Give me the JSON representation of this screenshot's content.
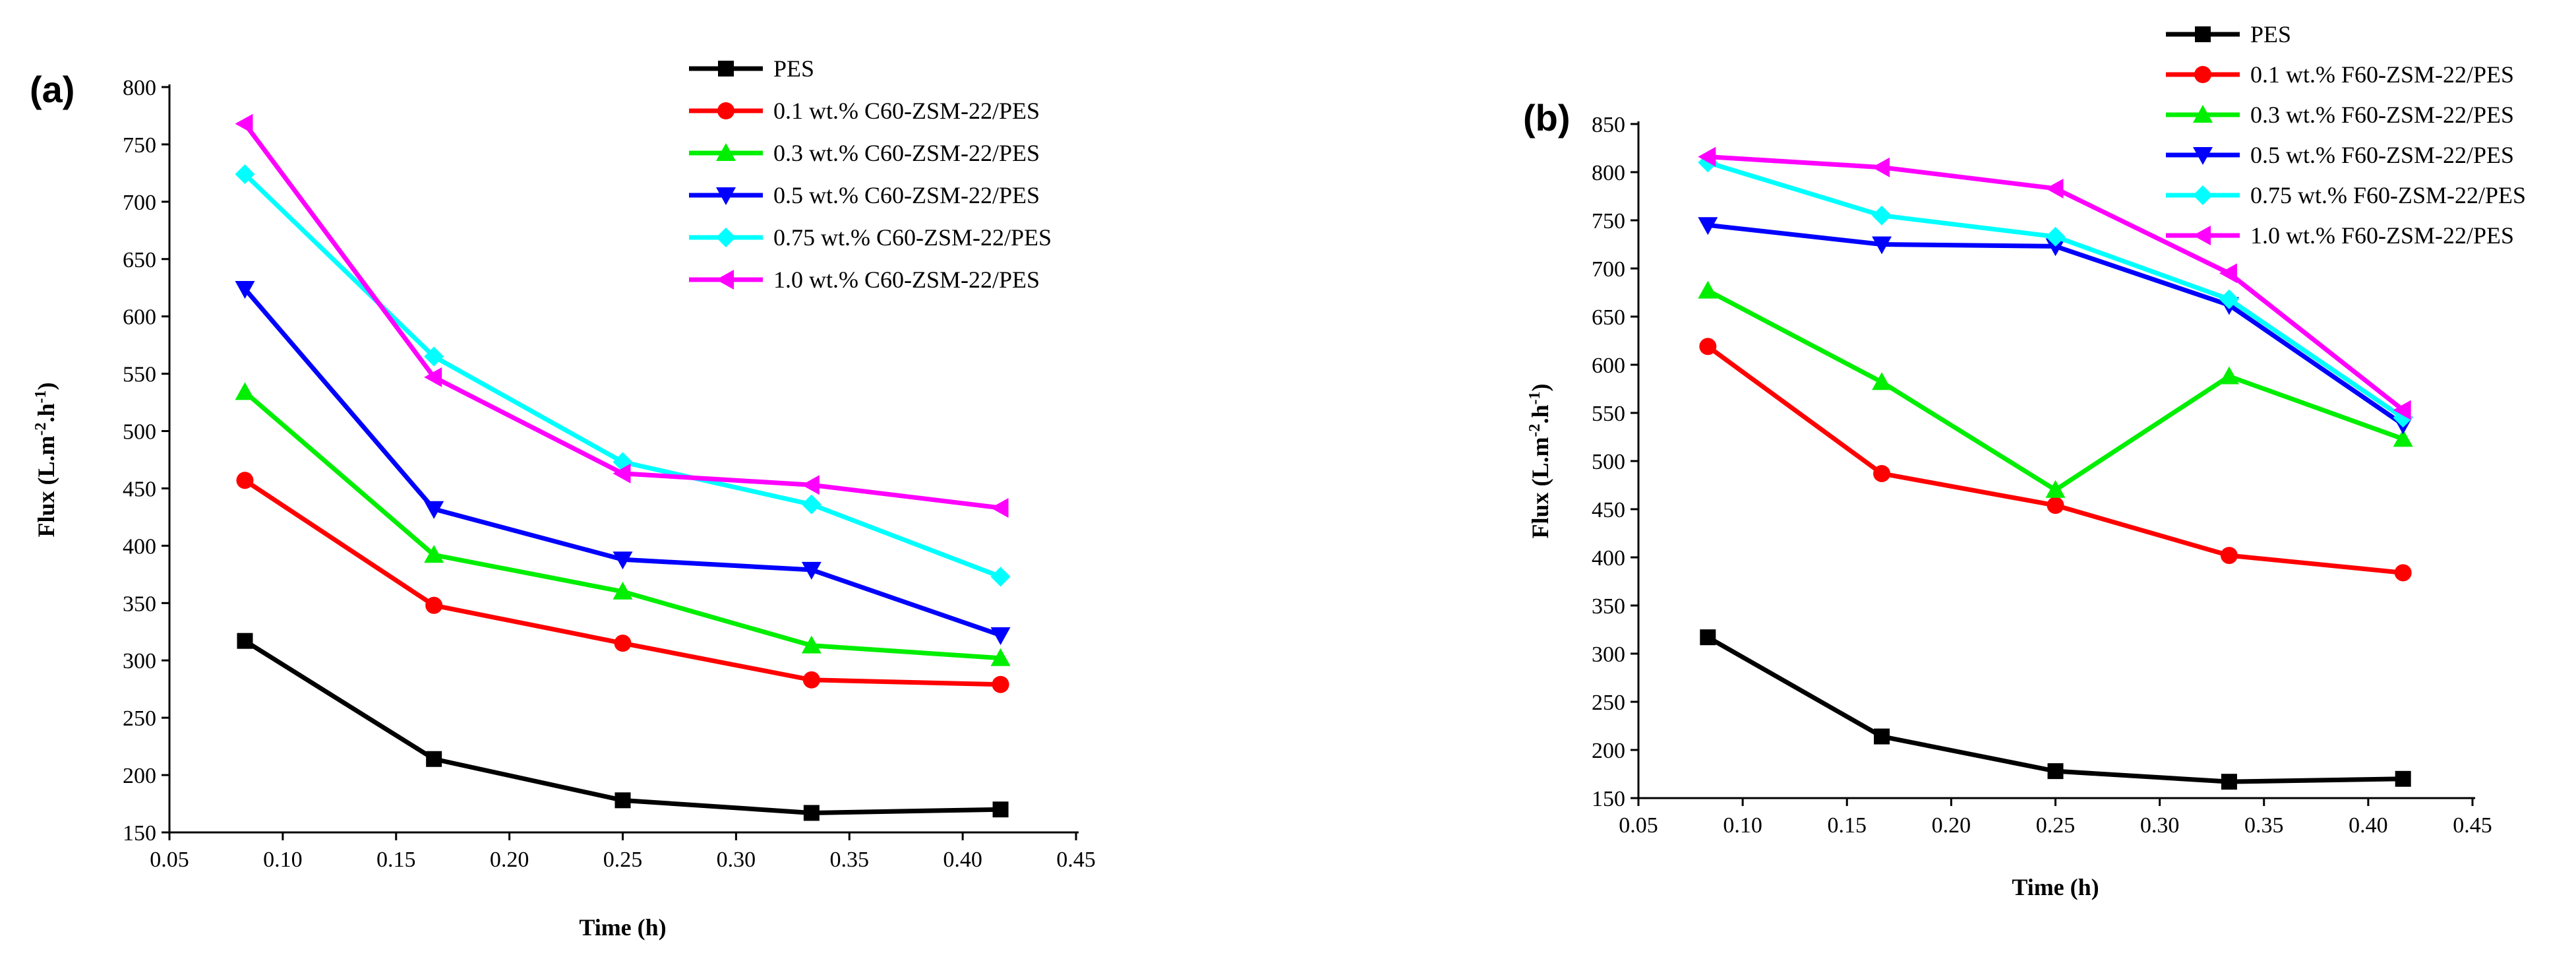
{
  "chart_data": [
    {
      "type": "line",
      "panel_label": "(a)",
      "xlabel": "Time (h)",
      "ylabel": "Flux (L.m-2.h-1)",
      "xlim": [
        0.05,
        0.45
      ],
      "ylim": [
        150,
        800
      ],
      "x_ticks": [
        "0.05",
        "0.10",
        "0.15",
        "0.20",
        "0.25",
        "0.30",
        "0.35",
        "0.40",
        "0.45"
      ],
      "y_ticks": [
        "150",
        "200",
        "250",
        "300",
        "350",
        "400",
        "450",
        "500",
        "550",
        "600",
        "650",
        "700",
        "750",
        "800"
      ],
      "legend_position": "top-right",
      "x": [
        0.0833,
        0.1667,
        0.25,
        0.3333,
        0.4167
      ],
      "series": [
        {
          "name": "PES",
          "color": "#000000",
          "marker": "square",
          "values": [
            317,
            214,
            178,
            167,
            170
          ]
        },
        {
          "name": "0.1 wt.% C60-ZSM-22/PES",
          "color": "#ff0000",
          "marker": "circle",
          "values": [
            457,
            348,
            315,
            283,
            279
          ]
        },
        {
          "name": "0.3 wt.% C60-ZSM-22/PES",
          "color": "#00ee00",
          "marker": "triangle-up",
          "values": [
            534,
            392,
            360,
            313,
            302
          ]
        },
        {
          "name": "0.5 wt.% C60-ZSM-22/PES",
          "color": "#0000ff",
          "marker": "triangle-down",
          "values": [
            624,
            432,
            388,
            379,
            322
          ]
        },
        {
          "name": "0.75 wt.% C60-ZSM-22/PES",
          "color": "#00ffff",
          "marker": "diamond",
          "values": [
            724,
            565,
            473,
            436,
            373
          ]
        },
        {
          "name": "1.0 wt.% C60-ZSM-22/PES",
          "color": "#ff00ff",
          "marker": "triangle-left",
          "values": [
            768,
            547,
            463,
            453,
            433
          ]
        }
      ]
    },
    {
      "type": "line",
      "panel_label": "(b)",
      "xlabel": "Time (h)",
      "ylabel": "Flux (L.m-2.h-1)",
      "xlim": [
        0.05,
        0.45
      ],
      "ylim": [
        150,
        850
      ],
      "x_ticks": [
        "0.05",
        "0.10",
        "0.15",
        "0.20",
        "0.25",
        "0.30",
        "0.35",
        "0.40",
        "0.45"
      ],
      "y_ticks": [
        "150",
        "200",
        "250",
        "300",
        "350",
        "400",
        "450",
        "500",
        "550",
        "600",
        "650",
        "700",
        "750",
        "800",
        "850"
      ],
      "legend_position": "top-right",
      "x": [
        0.0833,
        0.1667,
        0.25,
        0.3333,
        0.4167
      ],
      "series": [
        {
          "name": "PES",
          "color": "#000000",
          "marker": "square",
          "values": [
            317,
            214,
            178,
            167,
            170
          ]
        },
        {
          "name": "0.1 wt.% F60-ZSM-22/PES",
          "color": "#ff0000",
          "marker": "circle",
          "values": [
            619,
            487,
            454,
            402,
            384
          ]
        },
        {
          "name": "0.3 wt.% F60-ZSM-22/PES",
          "color": "#00ee00",
          "marker": "triangle-up",
          "values": [
            677,
            582,
            470,
            588,
            523
          ]
        },
        {
          "name": "0.5 wt.% F60-ZSM-22/PES",
          "color": "#0000ff",
          "marker": "triangle-down",
          "values": [
            745,
            725,
            723,
            662,
            538
          ]
        },
        {
          "name": "0.75 wt.% F60-ZSM-22/PES",
          "color": "#00ffff",
          "marker": "diamond",
          "values": [
            810,
            755,
            733,
            668,
            545
          ]
        },
        {
          "name": "1.0 wt.% F60-ZSM-22/PES",
          "color": "#ff00ff",
          "marker": "triangle-left",
          "values": [
            816,
            805,
            783,
            695,
            553
          ]
        }
      ]
    }
  ]
}
